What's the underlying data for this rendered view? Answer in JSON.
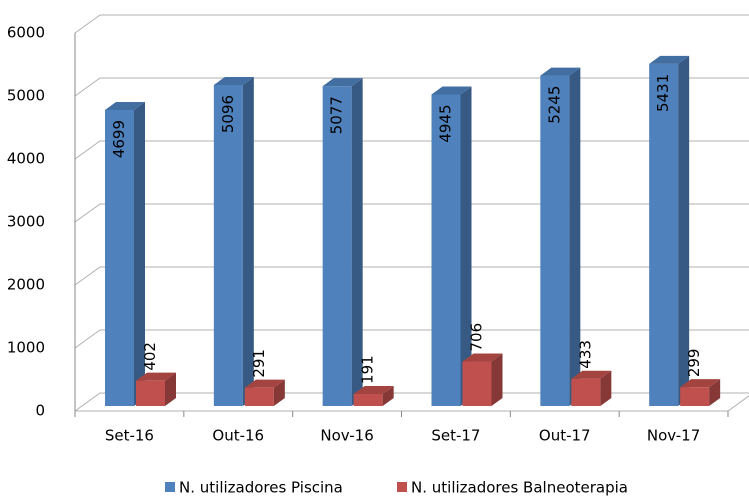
{
  "chart_data": {
    "type": "bar3d",
    "categories": [
      "Set-16",
      "Out-16",
      "Nov-16",
      "Set-17",
      "Out-17",
      "Nov-17"
    ],
    "series": [
      {
        "name": "N. utilizadores Piscina",
        "color": "#4f81bd",
        "values": [
          4699,
          5096,
          5077,
          4945,
          5245,
          5431
        ]
      },
      {
        "name": "N. utilizadores Balneoterapia",
        "color": "#c0504d",
        "values": [
          402,
          291,
          191,
          706,
          433,
          299
        ]
      }
    ],
    "ylim": [
      0,
      6000
    ],
    "yticks": [
      0,
      1000,
      2000,
      3000,
      4000,
      5000,
      6000
    ],
    "grid": true,
    "legend": "bottom"
  }
}
